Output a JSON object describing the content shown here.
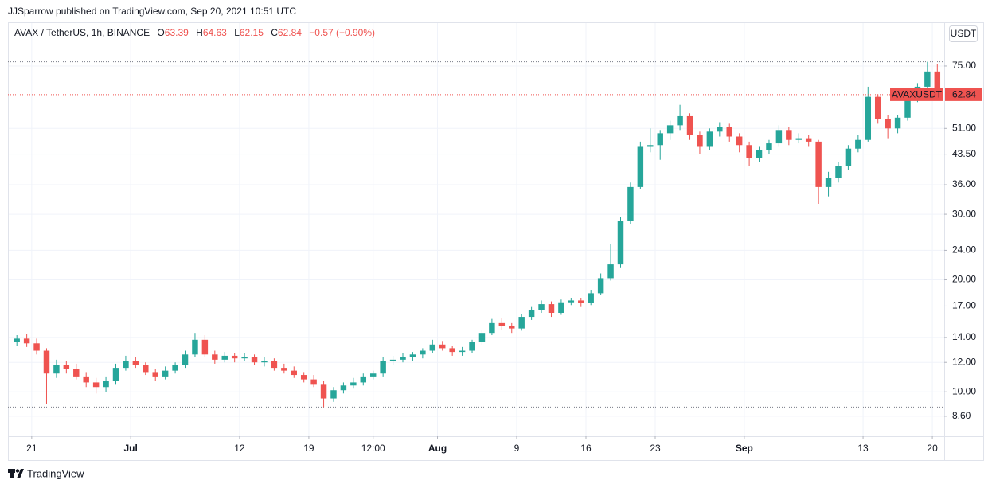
{
  "header": "JJSparrow published on TradingView.com, Sep 20, 2021 10:51 UTC",
  "footer": "TradingView",
  "chart_data": {
    "type": "candlestick",
    "legend": {
      "symbol": "AVAX / TetherUS, 1h, BINANCE",
      "ohlc": [
        {
          "key": "O",
          "value": 63.39
        },
        {
          "key": "H",
          "value": 64.63
        },
        {
          "key": "L",
          "value": 62.15
        },
        {
          "key": "C",
          "value": 62.84
        }
      ],
      "change": "−0.57 (−0.90%)"
    },
    "currency": "USDT",
    "symbol_tag": "AVAXUSDT",
    "log_scale": true,
    "grid": true,
    "up_color": "#26a69a",
    "down_color": "#ef5350",
    "high_line": 77.0,
    "low_line": 9.1,
    "xlim": [
      18.6,
      113.2
    ],
    "ylim": [
      7.6,
      98.3
    ],
    "xticks": [
      21,
      {
        "value": 31,
        "label": "Jul"
      },
      {
        "value": 42,
        "label": "12"
      },
      {
        "value": 49,
        "label": "19"
      },
      {
        "value": 55.5,
        "label": "12:00"
      },
      {
        "value": 62,
        "label": "Aug"
      },
      {
        "value": 70,
        "label": "9"
      },
      {
        "value": 77,
        "label": "16"
      },
      {
        "value": 84,
        "label": "23"
      },
      {
        "value": 93,
        "label": "Sep"
      },
      {
        "value": 105,
        "label": "13"
      },
      {
        "value": 112,
        "label": "20"
      }
    ],
    "yticks": [
      {
        "value": 75,
        "label": "75.00"
      },
      {
        "value": 51,
        "label": "51.00"
      },
      {
        "value": 43.5,
        "label": "43.50"
      },
      {
        "value": 36,
        "label": "36.00"
      },
      {
        "value": 30,
        "label": "30.00"
      },
      {
        "value": 24,
        "label": "24.00"
      },
      {
        "value": 20,
        "label": "20.00"
      },
      {
        "value": 17,
        "label": "17.00"
      },
      {
        "value": 14,
        "label": "14.00"
      },
      {
        "value": 12,
        "label": "12.00"
      },
      {
        "value": 10,
        "label": "10.00"
      },
      {
        "value": 8.6,
        "label": "8.60"
      }
    ],
    "x": [
      19.5,
      20.5,
      21.5,
      22.5,
      23.5,
      24.5,
      25.5,
      26.5,
      27.5,
      28.5,
      29.5,
      30.5,
      31.5,
      32.5,
      33.5,
      34.5,
      35.5,
      36.5,
      37.5,
      38.5,
      39.5,
      40.5,
      41.5,
      42.5,
      43.5,
      44.5,
      45.5,
      46.5,
      47.5,
      48.5,
      49.5,
      50.5,
      51.5,
      52.5,
      53.5,
      54.5,
      55.5,
      56.5,
      57.5,
      58.5,
      59.5,
      60.5,
      61.5,
      62.5,
      63.5,
      64.5,
      65.5,
      66.5,
      67.5,
      68.5,
      69.5,
      70.5,
      71.5,
      72.5,
      73.5,
      74.5,
      75.5,
      76.5,
      77.5,
      78.5,
      79.5,
      80.5,
      81.5,
      82.5,
      83.5,
      84.5,
      85.5,
      86.5,
      87.5,
      88.5,
      89.5,
      90.5,
      91.5,
      92.5,
      93.5,
      94.5,
      95.5,
      96.5,
      97.5,
      98.5,
      99.5,
      100.5,
      101.5,
      102.5,
      103.5,
      104.5,
      105.5,
      106.5,
      107.5,
      108.5,
      109.5,
      110.5,
      111.5,
      112.5
    ],
    "open": [
      13.6,
      13.9,
      13.5,
      12.9,
      11.2,
      11.8,
      11.5,
      11.0,
      10.6,
      10.3,
      10.7,
      11.6,
      12.1,
      11.8,
      11.3,
      11.0,
      11.4,
      11.8,
      12.6,
      13.8,
      12.6,
      12.2,
      12.5,
      12.3,
      12.4,
      12.0,
      12.1,
      11.6,
      11.4,
      11.1,
      10.8,
      10.5,
      9.6,
      10.1,
      10.4,
      10.6,
      11.0,
      11.2,
      12.1,
      12.2,
      12.4,
      12.6,
      12.9,
      13.4,
      13.1,
      12.8,
      12.9,
      13.6,
      14.4,
      15.3,
      15.0,
      14.8,
      15.9,
      16.6,
      17.2,
      16.3,
      17.4,
      17.6,
      17.3,
      18.4,
      20.2,
      22.0,
      28.8,
      35.5,
      45.5,
      46.0,
      49.5,
      52.0,
      55.0,
      49.0,
      45.5,
      50.0,
      51.5,
      48.5,
      46.0,
      42.5,
      44.5,
      46.5,
      50.5,
      47.5,
      48.0,
      47.0,
      35.5,
      37.5,
      40.5,
      45.0,
      47.5,
      62.0,
      54.0,
      51.0,
      54.5,
      61.0,
      66.0,
      72.5
    ],
    "high": [
      14.2,
      14.3,
      13.9,
      13.1,
      12.2,
      12.1,
      11.9,
      11.3,
      10.9,
      11.0,
      11.9,
      12.5,
      12.4,
      12.0,
      11.5,
      11.7,
      12.0,
      12.9,
      14.4,
      14.2,
      12.9,
      12.8,
      12.7,
      12.7,
      12.6,
      12.4,
      12.3,
      11.9,
      11.7,
      11.3,
      11.1,
      10.7,
      10.3,
      10.6,
      10.9,
      11.2,
      11.4,
      12.4,
      12.5,
      12.7,
      12.8,
      13.1,
      13.8,
      13.7,
      13.3,
      13.2,
      13.8,
      14.7,
      15.7,
      15.8,
      15.3,
      16.2,
      16.9,
      17.6,
      17.5,
      17.7,
      17.9,
      17.9,
      18.8,
      20.8,
      25.0,
      29.5,
      36.5,
      47.0,
      51.0,
      50.5,
      53.5,
      59.0,
      56.0,
      50.0,
      51.0,
      53.0,
      52.5,
      49.5,
      47.0,
      45.5,
      47.5,
      52.0,
      51.5,
      49.5,
      49.0,
      47.5,
      39.0,
      41.5,
      46.0,
      49.0,
      66.0,
      63.0,
      55.5,
      55.5,
      62.0,
      67.5,
      77.0,
      76.0
    ],
    "low": [
      13.3,
      13.2,
      12.6,
      9.3,
      10.9,
      11.2,
      10.8,
      10.3,
      9.9,
      10.0,
      10.5,
      11.4,
      11.6,
      11.1,
      10.7,
      10.8,
      11.2,
      11.6,
      12.4,
      12.4,
      11.9,
      12.0,
      12.0,
      12.1,
      11.8,
      11.7,
      11.4,
      11.2,
      10.9,
      10.6,
      10.3,
      9.1,
      9.4,
      9.9,
      10.2,
      10.4,
      10.8,
      11.0,
      11.8,
      12.0,
      12.1,
      12.3,
      12.7,
      12.9,
      12.5,
      12.5,
      12.7,
      13.4,
      14.2,
      14.7,
      14.4,
      14.6,
      15.6,
      16.3,
      15.9,
      16.1,
      17.1,
      16.9,
      17.1,
      18.2,
      19.9,
      21.5,
      28.2,
      35.0,
      44.0,
      42.0,
      47.5,
      50.5,
      47.5,
      43.5,
      44.5,
      48.5,
      47.0,
      44.0,
      40.5,
      41.5,
      43.5,
      45.5,
      46.0,
      46.5,
      45.5,
      32.0,
      33.5,
      36.5,
      39.5,
      44.0,
      47.0,
      52.5,
      48.0,
      49.5,
      53.5,
      60.0,
      64.5,
      62.15
    ],
    "close": [
      13.9,
      13.5,
      12.9,
      11.2,
      11.8,
      11.5,
      11.0,
      10.6,
      10.3,
      10.7,
      11.6,
      12.1,
      11.8,
      11.3,
      11.0,
      11.4,
      11.8,
      12.6,
      13.8,
      12.6,
      12.2,
      12.5,
      12.3,
      12.4,
      12.0,
      12.1,
      11.6,
      11.4,
      11.1,
      10.8,
      10.5,
      9.6,
      10.1,
      10.4,
      10.6,
      11.0,
      11.2,
      12.1,
      12.2,
      12.4,
      12.6,
      12.9,
      13.4,
      13.1,
      12.8,
      12.9,
      13.6,
      14.4,
      15.3,
      15.0,
      14.8,
      15.9,
      16.6,
      17.2,
      16.3,
      17.4,
      17.6,
      17.3,
      18.4,
      20.2,
      22.0,
      28.8,
      35.5,
      45.5,
      46.0,
      49.5,
      52.0,
      55.0,
      49.0,
      45.5,
      50.0,
      51.5,
      48.5,
      46.0,
      42.5,
      44.5,
      46.5,
      50.5,
      47.5,
      48.0,
      47.0,
      35.5,
      37.5,
      40.5,
      45.0,
      47.5,
      62.0,
      54.0,
      51.0,
      54.5,
      61.0,
      66.0,
      72.5,
      62.84
    ]
  }
}
